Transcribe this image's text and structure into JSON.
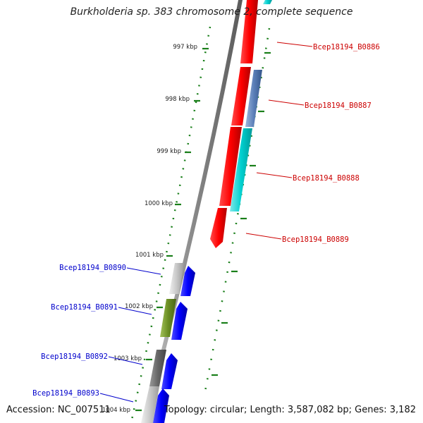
{
  "title": "Burkholderia sp. 383 chromosome 2, complete sequence",
  "footer": {
    "accession": "Accession: NC_007511",
    "summary": "Topology: circular; Length: 3,587,082 bp; Genes: 3,182"
  },
  "scale_labels": [
    "997 kbp",
    "998 kbp",
    "999 kbp",
    "1000 kbp",
    "1001 kbp",
    "1002 kbp",
    "1003 kbp",
    "1004 kbp"
  ],
  "genes": [
    {
      "label": "Bcep18194_B0886",
      "strand": "forward",
      "color": "#cc0000"
    },
    {
      "label": "Bcep18194_B0887",
      "strand": "forward",
      "color": "#cc0000"
    },
    {
      "label": "Bcep18194_B0888",
      "strand": "forward",
      "color": "#cc0000"
    },
    {
      "label": "Bcep18194_B0889",
      "strand": "forward",
      "color": "#cc0000"
    },
    {
      "label": "Bcep18194_B0890",
      "strand": "reverse",
      "color": "#0000cc"
    },
    {
      "label": "Bcep18194_B0891",
      "strand": "reverse",
      "color": "#0000cc"
    },
    {
      "label": "Bcep18194_B0892",
      "strand": "reverse",
      "color": "#0000cc"
    },
    {
      "label": "Bcep18194_B0893",
      "strand": "reverse",
      "color": "#0000cc"
    }
  ],
  "colors": {
    "forward_gene": "#ff0000",
    "reverse_gene": "#0000ff",
    "cog_cyan": "#00cccc",
    "cog_steelblue": "#5b7fb8",
    "cog_silver": "#c0c0c0",
    "cog_olive": "#6b8e23",
    "cog_darkgray": "#666666",
    "backbone": "#888888",
    "ticks": "#1a7f1a"
  }
}
